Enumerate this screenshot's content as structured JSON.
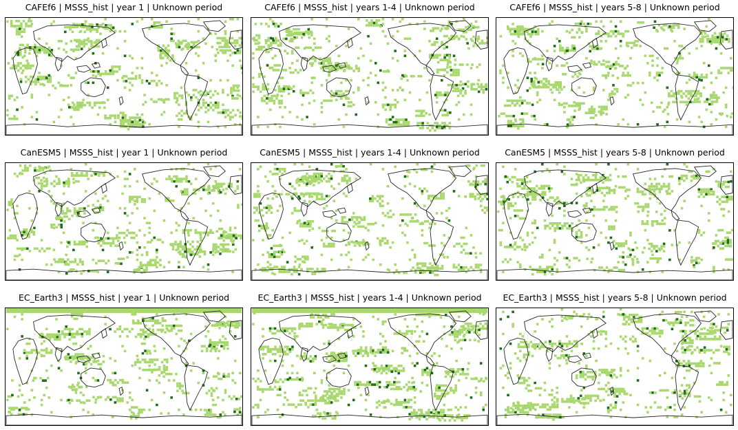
{
  "figure": {
    "colors": {
      "light_green": "#a8d86e",
      "dark_green": "#1e6b18",
      "coast": "#222222",
      "frame": "#000000"
    },
    "panels": [
      {
        "title": "CAFEf6 | MSSS_hist | year 1 | Unknown period",
        "seed": 11
      },
      {
        "title": "CAFEf6 | MSSS_hist | years 1-4 | Unknown period",
        "seed": 23
      },
      {
        "title": "CAFEf6 | MSSS_hist | years 5-8 | Unknown period",
        "seed": 37
      },
      {
        "title": "CanESM5 | MSSS_hist | year 1 | Unknown period",
        "seed": 41
      },
      {
        "title": "CanESM5 | MSSS_hist | years 1-4 | Unknown period",
        "seed": 53
      },
      {
        "title": "CanESM5 | MSSS_hist | years 5-8 | Unknown period",
        "seed": 67
      },
      {
        "title": "EC_Earth3 | MSSS_hist | year 1 | Unknown period",
        "seed": 71
      },
      {
        "title": "EC_Earth3 | MSSS_hist | years 1-4 | Unknown period",
        "seed": 83
      },
      {
        "title": "EC_Earth3 | MSSS_hist | years 5-8 | Unknown period",
        "seed": 97
      }
    ]
  }
}
